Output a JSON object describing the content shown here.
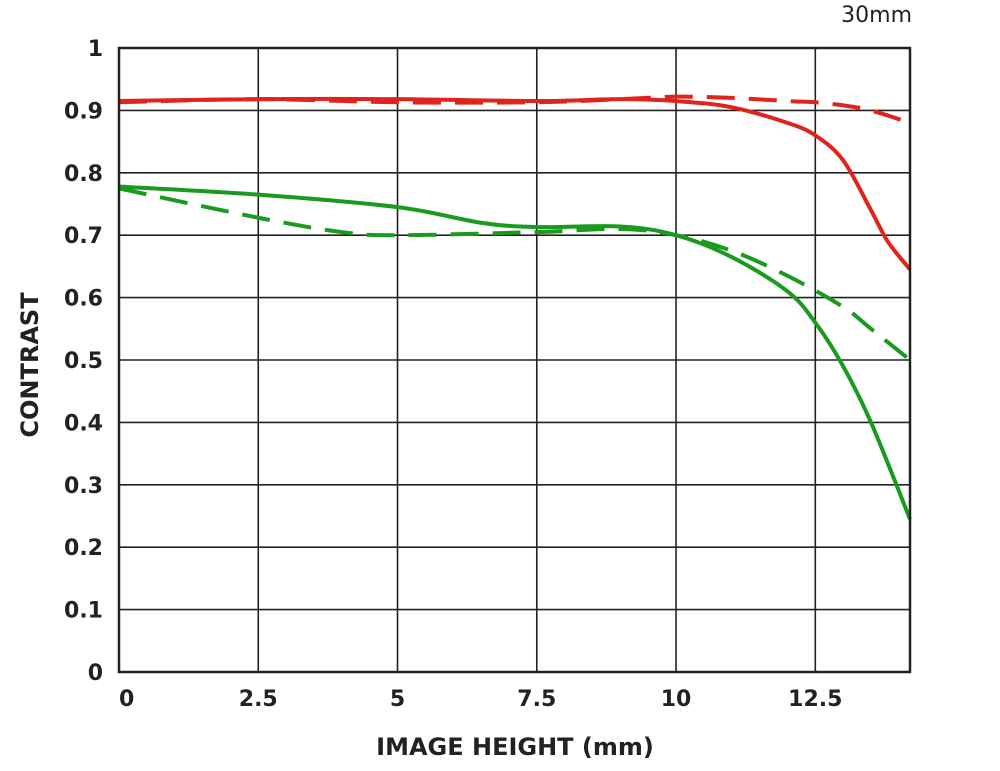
{
  "chart_data": {
    "type": "line",
    "title": "30mm",
    "xlabel": "IMAGE HEIGHT (mm)",
    "ylabel": "CONTRAST",
    "xlim": [
      0,
      14.2
    ],
    "ylim": [
      0,
      1
    ],
    "grid": true,
    "x_ticks": [
      0,
      2.5,
      5,
      7.5,
      10,
      12.5
    ],
    "x_tick_labels": [
      "0",
      "2.5",
      "5",
      "7.5",
      "10",
      "12.5"
    ],
    "y_ticks": [
      0,
      0.1,
      0.2,
      0.3,
      0.4,
      0.5,
      0.6,
      0.7,
      0.8,
      0.9,
      1
    ],
    "y_tick_labels": [
      "0",
      "0.1",
      "0.2",
      "0.3",
      "0.4",
      "0.5",
      "0.6",
      "0.7",
      "0.8",
      "0.9",
      "1"
    ],
    "series": [
      {
        "color": "#e0231c",
        "dash": false,
        "x": [
          0,
          2.5,
          5,
          7.5,
          9,
          10,
          11,
          12,
          12.5,
          13,
          13.5,
          13.8,
          14.2
        ],
        "values": [
          0.915,
          0.918,
          0.918,
          0.915,
          0.918,
          0.915,
          0.905,
          0.88,
          0.86,
          0.82,
          0.74,
          0.69,
          0.645
        ]
      },
      {
        "color": "#e0231c",
        "dash": true,
        "x": [
          0,
          2.5,
          5,
          7.5,
          9,
          10,
          11,
          12,
          12.5,
          13,
          13.5,
          14.2
        ],
        "values": [
          0.913,
          0.918,
          0.913,
          0.913,
          0.918,
          0.922,
          0.92,
          0.915,
          0.913,
          0.908,
          0.9,
          0.88
        ]
      },
      {
        "color": "#1a9a1f",
        "dash": false,
        "x": [
          0,
          2.5,
          5,
          6.5,
          7.5,
          9,
          10,
          11,
          12,
          12.5,
          13,
          13.5,
          14.2
        ],
        "values": [
          0.778,
          0.765,
          0.745,
          0.72,
          0.713,
          0.714,
          0.7,
          0.665,
          0.61,
          0.56,
          0.49,
          0.4,
          0.245
        ]
      },
      {
        "color": "#1a9a1f",
        "dash": true,
        "x": [
          0,
          2.5,
          4,
          5,
          7.5,
          9,
          10,
          11,
          12,
          13,
          13.5,
          14.2
        ],
        "values": [
          0.775,
          0.728,
          0.705,
          0.7,
          0.705,
          0.71,
          0.7,
          0.675,
          0.635,
          0.585,
          0.55,
          0.5
        ]
      }
    ]
  }
}
